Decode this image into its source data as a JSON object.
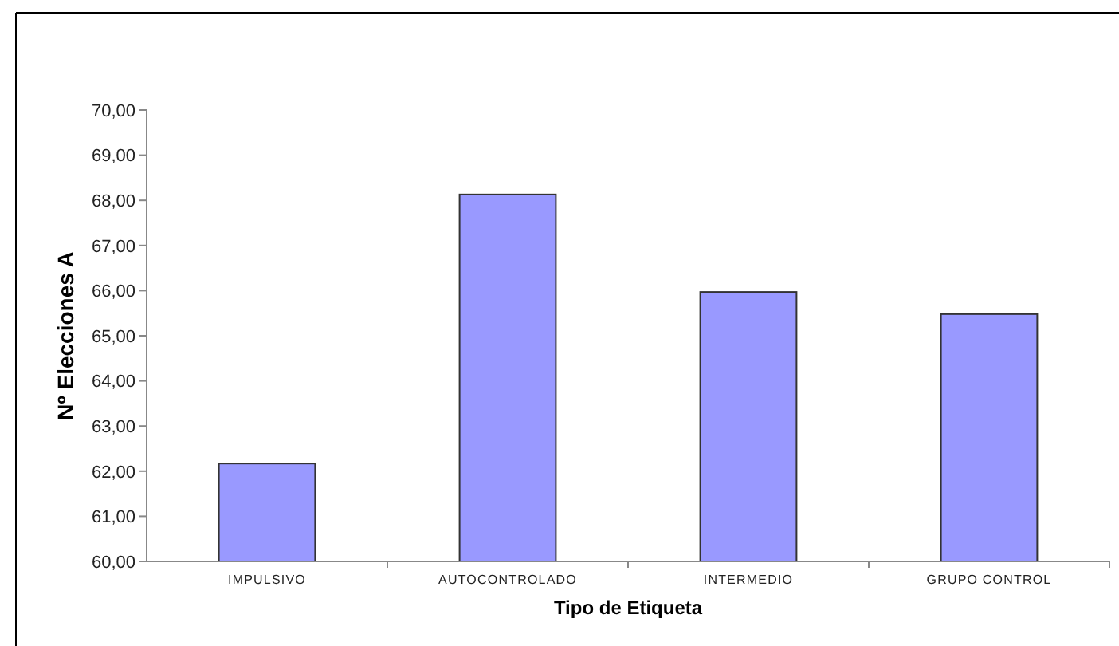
{
  "chart_data": {
    "type": "bar",
    "xlabel": "Tipo de Etiqueta",
    "ylabel": "Nº Elecciones A",
    "categories": [
      "IMPULSIVO",
      "AUTOCONTROLADO",
      "INTERMEDIO",
      "GRUPO CONTROL"
    ],
    "values": [
      62.17,
      68.13,
      65.97,
      65.48
    ],
    "color": "#9999ff",
    "ylim": [
      60,
      70
    ],
    "yticks": [
      {
        "value": 60,
        "label": "60,00"
      },
      {
        "value": 61,
        "label": "61,00"
      },
      {
        "value": 62,
        "label": "62,00"
      },
      {
        "value": 63,
        "label": "63,00"
      },
      {
        "value": 64,
        "label": "64,00"
      },
      {
        "value": 65,
        "label": "65,00"
      },
      {
        "value": 66,
        "label": "66,00"
      },
      {
        "value": 67,
        "label": "67,00"
      },
      {
        "value": 68,
        "label": "68,00"
      },
      {
        "value": 69,
        "label": "69,00"
      },
      {
        "value": 70,
        "label": "70,00"
      }
    ],
    "grid": false
  }
}
